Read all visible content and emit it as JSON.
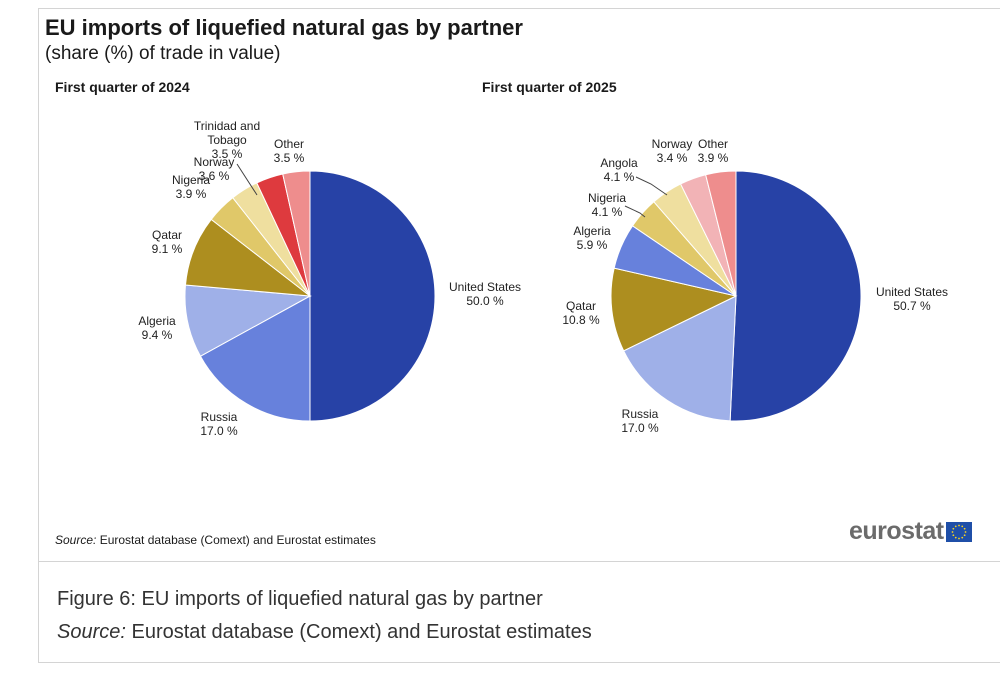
{
  "header": {
    "title": "EU imports of liquefied natural gas by partner",
    "subtitle": "(share (%) of trade in value)"
  },
  "chart_data": [
    {
      "type": "pie",
      "title": "First quarter of 2024",
      "unit": "%",
      "slices": [
        {
          "label": "United States",
          "value": 50.0,
          "value_text": "50.0 %",
          "color": "#2742a6"
        },
        {
          "label": "Russia",
          "value": 17.0,
          "value_text": "17.0 %",
          "color": "#6781dc"
        },
        {
          "label": "Algeria",
          "value": 9.4,
          "value_text": "9.4 %",
          "color": "#9fb0e8"
        },
        {
          "label": "Qatar",
          "value": 9.1,
          "value_text": "9.1 %",
          "color": "#ad8e1f"
        },
        {
          "label": "Nigeria",
          "value": 3.9,
          "value_text": "3.9 %",
          "color": "#e0c869"
        },
        {
          "label": "Norway",
          "value": 3.6,
          "value_text": "3.6 %",
          "color": "#efdf9f"
        },
        {
          "label": "Trinidad and Tobago",
          "value": 3.5,
          "value_text": "3.5 %",
          "color": "#de3a3e"
        },
        {
          "label": "Other",
          "value": 3.5,
          "value_text": "3.5 %",
          "color": "#ee8d8d"
        }
      ]
    },
    {
      "type": "pie",
      "title": "First quarter of 2025",
      "unit": "%",
      "slices": [
        {
          "label": "United States",
          "value": 50.7,
          "value_text": "50.7 %",
          "color": "#2742a6"
        },
        {
          "label": "Russia",
          "value": 17.0,
          "value_text": "17.0 %",
          "color": "#9fb0e8"
        },
        {
          "label": "Qatar",
          "value": 10.8,
          "value_text": "10.8 %",
          "color": "#ad8e1f"
        },
        {
          "label": "Algeria",
          "value": 5.9,
          "value_text": "5.9 %",
          "color": "#6781dc"
        },
        {
          "label": "Nigeria",
          "value": 4.1,
          "value_text": "4.1 %",
          "color": "#e0c869"
        },
        {
          "label": "Angola",
          "value": 4.1,
          "value_text": "4.1 %",
          "color": "#efdf9f"
        },
        {
          "label": "Norway",
          "value": 3.4,
          "value_text": "3.4 %",
          "color": "#f2b3b6"
        },
        {
          "label": "Other",
          "value": 3.9,
          "value_text": "3.9 %",
          "color": "#ee8d8d"
        }
      ]
    }
  ],
  "footer": {
    "source_label": "Source:",
    "source_text": "Eurostat database (Comext) and Eurostat estimates",
    "logo_text": "eurostat"
  },
  "caption": {
    "figure_title": "Figure 6: EU imports of liquefied natural gas by partner",
    "source_label": "Source:",
    "source_text": "Eurostat database (Comext) and Eurostat estimates"
  }
}
